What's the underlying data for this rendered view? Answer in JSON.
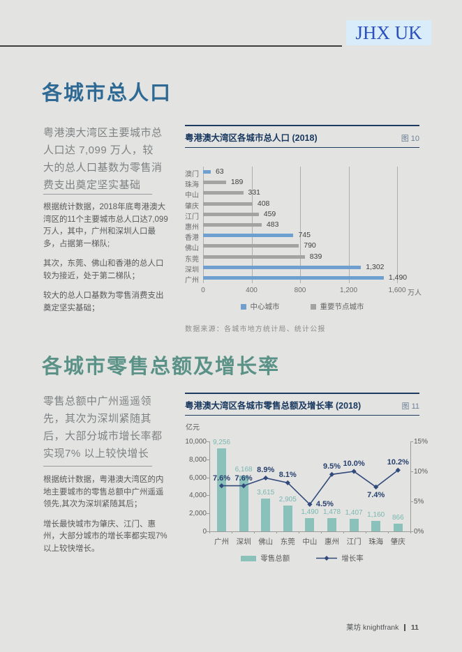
{
  "page": {
    "badge_text": "JHX UK",
    "footer": {
      "brand": "莱坊 knightfrank",
      "page_number": "11"
    }
  },
  "section_population": {
    "title": "各城市总人口",
    "lead": "粤港澳大湾区主要城市总人口达 7,099 万人，较大的总人口基数为零售消费支出奠定坚实基础",
    "paragraphs": [
      "根据统计数据，2018年底粤港澳大湾区的11个主要城市总人口达7,099万人，其中，广州和深圳人口最多，占据第一梯队;",
      "其次，东莞、佛山和香港的总人口较为接近，处于第二梯队；",
      "较大的总人口基数为零售消费支出奠定坚实基础；"
    ]
  },
  "section_retail": {
    "title": "各城市零售总额及增长率",
    "lead": "零售总额中广州遥遥领先，其次为深圳紧随其后，大部分城市增长率都实现7% 以上较快增长",
    "paragraphs": [
      "根据统计数据，粤港澳大湾区的内地主要城市的零售总额中广州遥遥领先,其次为深圳紧随其后；",
      "增长最快城市为肇庆、江门、惠州，大部分城市的增长率都实现7%以上较快增长。"
    ]
  },
  "chart_data": [
    {
      "id": "population-by-city",
      "type": "bar",
      "orientation": "horizontal",
      "title": "粤港澳大湾区各城市总人口 (2018)",
      "figure_label": "图 10",
      "categories": [
        "澳门",
        "珠海",
        "中山",
        "肇庆",
        "江门",
        "惠州",
        "香港",
        "佛山",
        "东莞",
        "深圳",
        "广州"
      ],
      "values": [
        63,
        189,
        331,
        408,
        459,
        483,
        745,
        790,
        839,
        1302,
        1490
      ],
      "value_labels": [
        "63",
        "189",
        "331",
        "408",
        "459",
        "483",
        "745",
        "790",
        "839",
        "1,302",
        "1,490"
      ],
      "series_of": [
        "中心城市",
        "重要节点城市",
        "重要节点城市",
        "重要节点城市",
        "重要节点城市",
        "重要节点城市",
        "中心城市",
        "重要节点城市",
        "重要节点城市",
        "中心城市",
        "中心城市"
      ],
      "legend": [
        {
          "label": "中心城市",
          "color": "#6f9fce"
        },
        {
          "label": "重要节点城市",
          "color": "#a3a3a1"
        }
      ],
      "xlim": [
        0,
        1600
      ],
      "x_ticks": [
        "0",
        "400",
        "800",
        "1,200",
        "1,600"
      ],
      "x_unit": "万人",
      "grid": "vertical",
      "source": "数据来源：各城市地方统计局、统计公报"
    },
    {
      "id": "retail-sales-and-growth",
      "type": "bar+line",
      "title": "粤港澳大湾区各城市零售总额及增长率 (2018)",
      "figure_label": "图 11",
      "categories": [
        "广州",
        "深圳",
        "佛山",
        "东莞",
        "中山",
        "惠州",
        "江门",
        "珠海",
        "肇庆"
      ],
      "bar_series": {
        "name": "零售总额",
        "values": [
          9256,
          6168,
          3615,
          2905,
          1490,
          1478,
          1407,
          1160,
          866
        ],
        "labels": [
          "9,256",
          "6,168",
          "3,615",
          "2,905",
          "1,490",
          "1,478",
          "1,407",
          "1,160",
          "866"
        ],
        "color": "#8ac1bb"
      },
      "line_series": {
        "name": "增长率",
        "values": [
          7.6,
          7.6,
          8.9,
          8.1,
          4.5,
          9.5,
          10.0,
          7.4,
          10.2
        ],
        "labels": [
          "7.6%",
          "7.6%",
          "8.9%",
          "8.1%",
          "4.5%",
          "9.5%",
          "10.0%",
          "7.4%",
          "10.2%"
        ],
        "color": "#31497b"
      },
      "left_axis": {
        "unit": "亿元",
        "ticks": [
          "10,000",
          "8,000",
          "6,000",
          "4,000",
          "2,000",
          "0"
        ],
        "lim": [
          0,
          10000
        ]
      },
      "right_axis": {
        "ticks": [
          "15%",
          "10%",
          "5%",
          "0%"
        ],
        "lim": [
          0,
          15
        ]
      },
      "legend_position": "bottom"
    }
  ]
}
